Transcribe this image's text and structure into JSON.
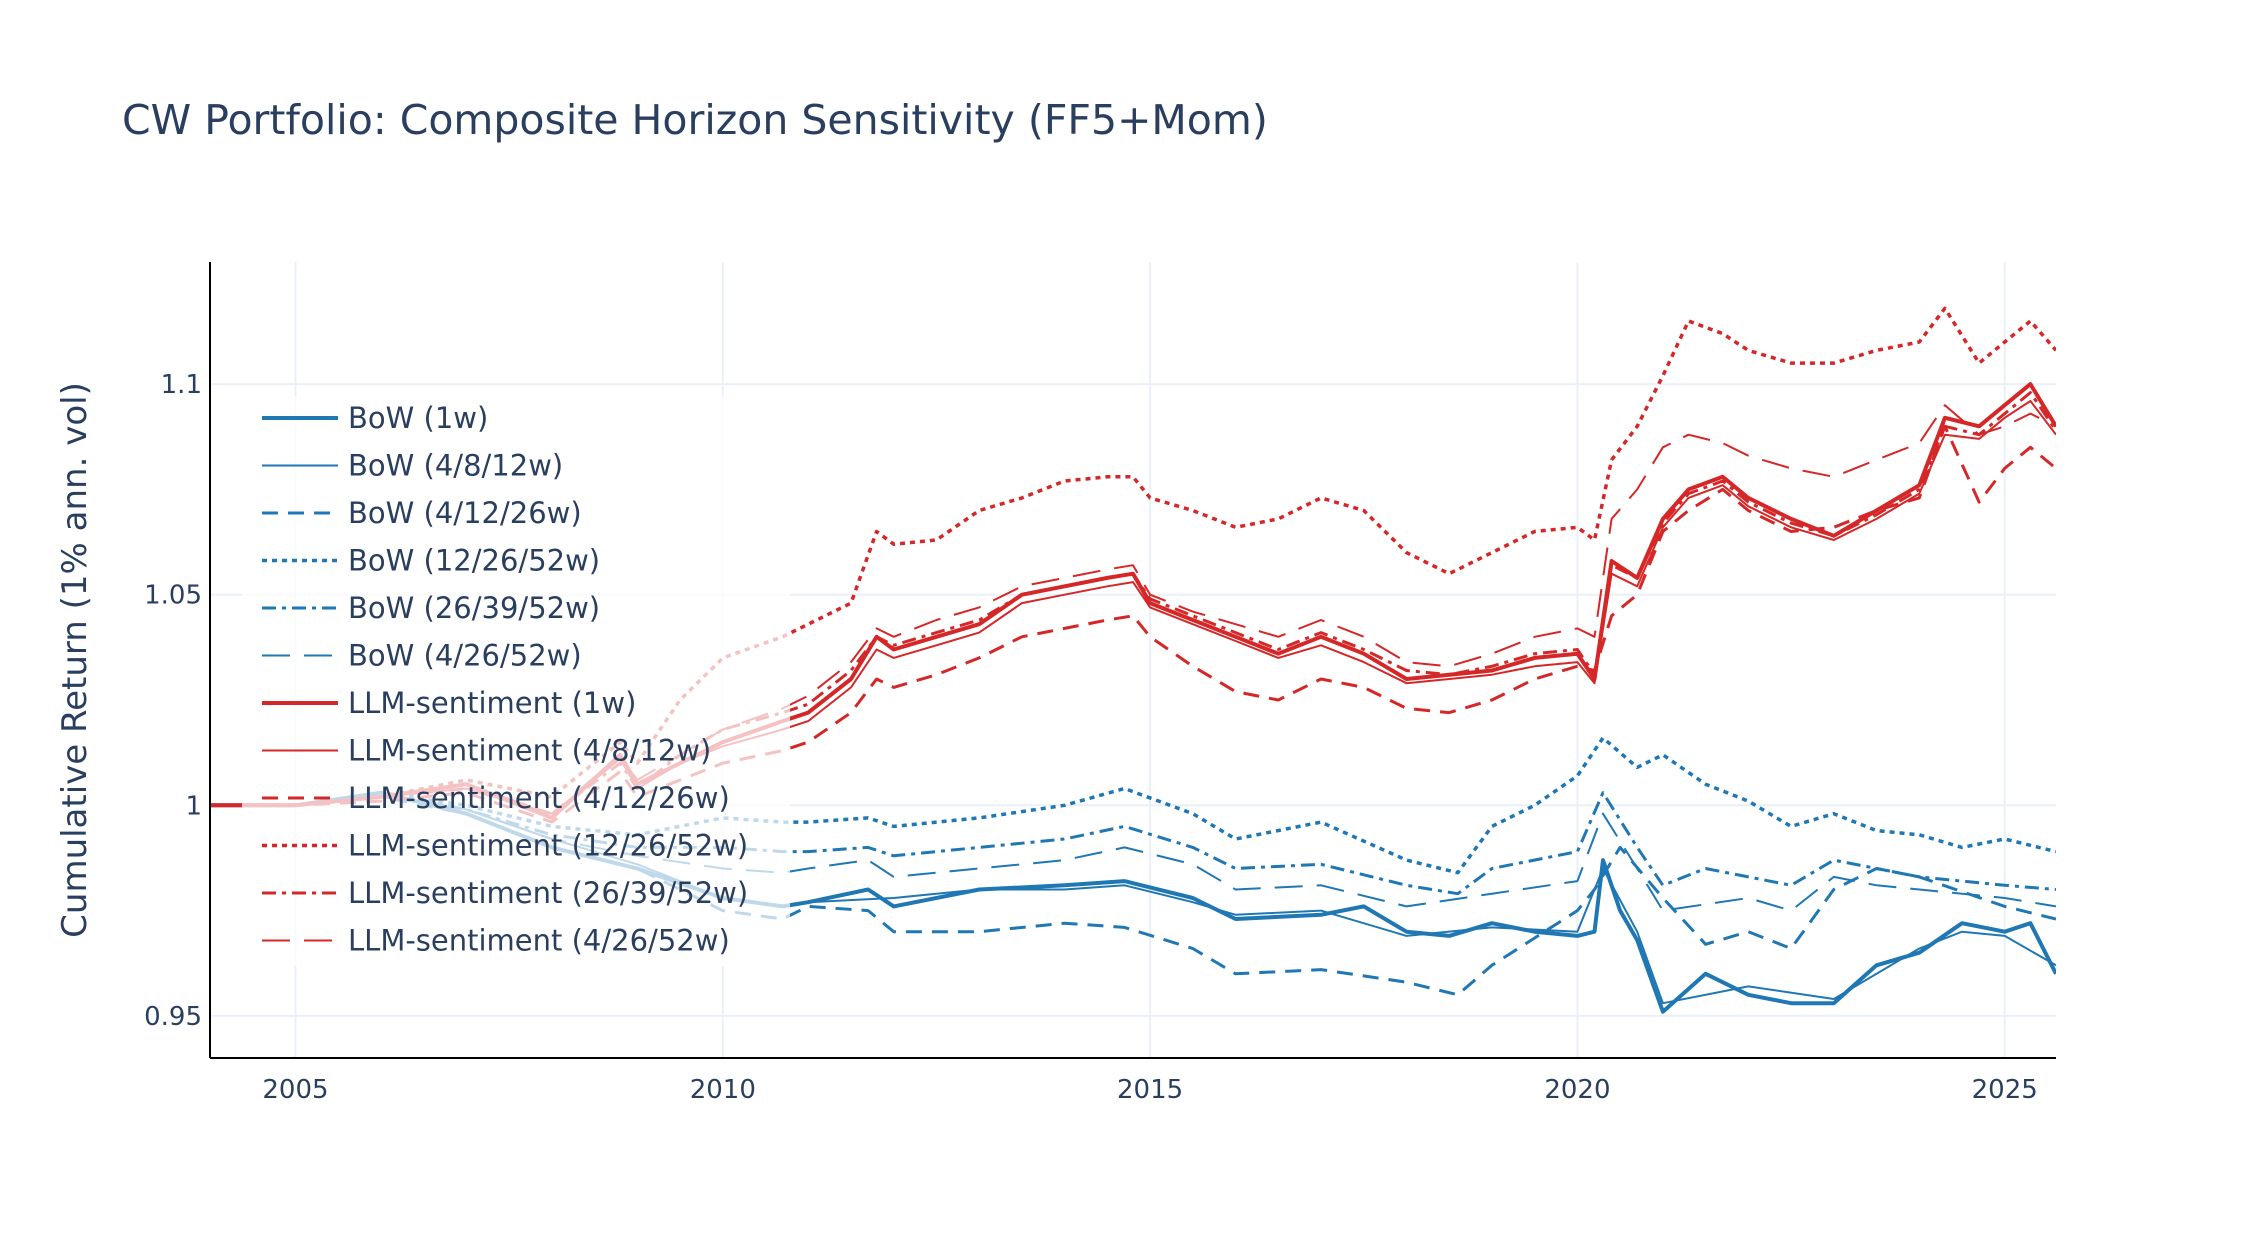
{
  "chart_data": {
    "type": "line",
    "title": "CW Portfolio: Composite Horizon Sensitivity (FF5+Mom)",
    "xlabel": "",
    "ylabel": "Cumulative Return (1% ann. vol)",
    "xlim": [
      2004.0,
      2025.6
    ],
    "ylim": [
      0.94,
      1.129
    ],
    "x_ticks": [
      {
        "value": 2005,
        "label": "2005"
      },
      {
        "value": 2010,
        "label": "2010"
      },
      {
        "value": 2015,
        "label": "2015"
      },
      {
        "value": 2020,
        "label": "2020"
      },
      {
        "value": 2025,
        "label": "2025"
      }
    ],
    "y_ticks": [
      {
        "value": 0.95,
        "label": "0.95"
      },
      {
        "value": 1.0,
        "label": "1"
      },
      {
        "value": 1.05,
        "label": "1.05"
      },
      {
        "value": 1.1,
        "label": "1.1"
      }
    ],
    "grid": true,
    "legend_position": "left-inside",
    "colors": {
      "bow": "#1f77b4",
      "llm": "#d62728",
      "grid": "#ebf0f8",
      "text": "#2a3f5f"
    },
    "series": [
      {
        "name": "BoW (1w)",
        "group": "bow",
        "dash": "solid",
        "width": 4,
        "x": [
          2004.0,
          2005.0,
          2006.0,
          2007.0,
          2008.0,
          2009.0,
          2010.0,
          2010.7,
          2011.0,
          2011.7,
          2012.0,
          2013.0,
          2014.0,
          2014.7,
          2015.5,
          2016.0,
          2017.0,
          2017.5,
          2018.0,
          2018.5,
          2019.0,
          2019.5,
          2020.0,
          2020.2,
          2020.3,
          2020.5,
          2020.7,
          2021.0,
          2021.5,
          2022.0,
          2022.5,
          2023.0,
          2023.5,
          2024.0,
          2024.5,
          2025.0,
          2025.3,
          2025.6
        ],
        "y": [
          1.0,
          1.0,
          1.003,
          0.998,
          0.99,
          0.985,
          0.978,
          0.976,
          0.977,
          0.98,
          0.976,
          0.98,
          0.981,
          0.982,
          0.978,
          0.973,
          0.974,
          0.976,
          0.97,
          0.969,
          0.972,
          0.97,
          0.969,
          0.97,
          0.987,
          0.975,
          0.968,
          0.951,
          0.96,
          0.955,
          0.953,
          0.953,
          0.962,
          0.965,
          0.972,
          0.97,
          0.972,
          0.96
        ]
      },
      {
        "name": "BoW (4/8/12w)",
        "group": "bow",
        "dash": "solid",
        "width": 2,
        "x": [
          2004.0,
          2005.0,
          2006.0,
          2007.0,
          2008.0,
          2009.0,
          2010.0,
          2010.7,
          2011.0,
          2012.0,
          2013.0,
          2014.0,
          2014.7,
          2015.5,
          2016.0,
          2017.0,
          2018.0,
          2019.0,
          2020.0,
          2020.3,
          2020.7,
          2021.0,
          2022.0,
          2023.0,
          2024.0,
          2024.5,
          2025.0,
          2025.6
        ],
        "y": [
          1.0,
          1.0,
          1.002,
          0.999,
          0.992,
          0.986,
          0.978,
          0.976,
          0.977,
          0.978,
          0.98,
          0.98,
          0.981,
          0.977,
          0.974,
          0.975,
          0.969,
          0.971,
          0.97,
          0.985,
          0.97,
          0.953,
          0.957,
          0.954,
          0.966,
          0.97,
          0.969,
          0.962
        ]
      },
      {
        "name": "BoW (4/12/26w)",
        "group": "bow",
        "dash": "16,10",
        "width": 3,
        "x": [
          2004.0,
          2005.0,
          2006.0,
          2007.0,
          2008.0,
          2009.0,
          2010.0,
          2010.7,
          2011.0,
          2011.7,
          2012.0,
          2013.0,
          2014.0,
          2014.7,
          2015.5,
          2016.0,
          2017.0,
          2018.0,
          2018.6,
          2019.0,
          2020.0,
          2020.2,
          2020.5,
          2021.0,
          2021.5,
          2022.0,
          2022.5,
          2023.0,
          2023.5,
          2024.0,
          2025.0,
          2025.6
        ],
        "y": [
          1.0,
          1.0,
          1.002,
          0.998,
          0.99,
          0.985,
          0.975,
          0.973,
          0.976,
          0.975,
          0.97,
          0.97,
          0.972,
          0.971,
          0.966,
          0.96,
          0.961,
          0.958,
          0.955,
          0.962,
          0.975,
          0.98,
          0.99,
          0.978,
          0.967,
          0.97,
          0.966,
          0.98,
          0.985,
          0.983,
          0.976,
          0.973
        ]
      },
      {
        "name": "BoW (12/26/52w)",
        "group": "bow",
        "dash": "5,5",
        "width": 3.5,
        "x": [
          2004.0,
          2005.0,
          2006.0,
          2007.0,
          2008.0,
          2009.0,
          2010.0,
          2010.7,
          2011.0,
          2011.7,
          2012.0,
          2013.0,
          2014.0,
          2014.7,
          2015.5,
          2016.0,
          2017.0,
          2018.0,
          2018.6,
          2019.0,
          2019.5,
          2020.0,
          2020.3,
          2020.7,
          2021.0,
          2021.5,
          2022.0,
          2022.5,
          2023.0,
          2023.5,
          2024.0,
          2024.5,
          2025.0,
          2025.6
        ],
        "y": [
          1.0,
          1.0,
          1.003,
          1.0,
          0.995,
          0.993,
          0.997,
          0.996,
          0.996,
          0.997,
          0.995,
          0.997,
          1.0,
          1.004,
          0.998,
          0.992,
          0.996,
          0.987,
          0.984,
          0.995,
          1.0,
          1.007,
          1.016,
          1.009,
          1.012,
          1.005,
          1.001,
          0.995,
          0.998,
          0.994,
          0.993,
          0.99,
          0.992,
          0.989
        ]
      },
      {
        "name": "BoW (26/39/52w)",
        "group": "bow",
        "dash": "14,6,4,6",
        "width": 3,
        "x": [
          2004.0,
          2005.0,
          2006.0,
          2007.0,
          2008.0,
          2009.0,
          2010.0,
          2010.7,
          2011.0,
          2011.7,
          2012.0,
          2013.0,
          2014.0,
          2014.7,
          2015.5,
          2016.0,
          2017.0,
          2018.0,
          2018.6,
          2019.0,
          2020.0,
          2020.3,
          2020.7,
          2021.0,
          2021.5,
          2022.0,
          2022.5,
          2023.0,
          2023.5,
          2024.0,
          2025.0,
          2025.6
        ],
        "y": [
          1.0,
          1.0,
          1.003,
          0.999,
          0.993,
          0.99,
          0.99,
          0.989,
          0.989,
          0.99,
          0.988,
          0.99,
          0.992,
          0.995,
          0.99,
          0.985,
          0.986,
          0.981,
          0.979,
          0.985,
          0.989,
          1.003,
          0.99,
          0.981,
          0.985,
          0.983,
          0.981,
          0.987,
          0.985,
          0.983,
          0.981,
          0.98
        ]
      },
      {
        "name": "BoW (4/26/52w)",
        "group": "bow",
        "dash": "28,14",
        "width": 2,
        "x": [
          2004.0,
          2005.0,
          2006.0,
          2007.0,
          2008.0,
          2009.0,
          2010.0,
          2010.7,
          2011.0,
          2011.7,
          2012.0,
          2013.0,
          2014.0,
          2014.7,
          2015.5,
          2016.0,
          2017.0,
          2018.0,
          2019.0,
          2020.0,
          2020.3,
          2020.7,
          2021.0,
          2022.0,
          2022.5,
          2023.0,
          2023.5,
          2024.0,
          2025.0,
          2025.6
        ],
        "y": [
          1.0,
          1.0,
          1.003,
          0.999,
          0.992,
          0.988,
          0.985,
          0.984,
          0.985,
          0.987,
          0.983,
          0.985,
          0.987,
          0.99,
          0.986,
          0.98,
          0.981,
          0.976,
          0.979,
          0.982,
          0.998,
          0.985,
          0.975,
          0.978,
          0.975,
          0.983,
          0.981,
          0.98,
          0.978,
          0.976
        ]
      },
      {
        "name": "LLM-sentiment (1w)",
        "group": "llm",
        "dash": "solid",
        "width": 4,
        "x": [
          2004.0,
          2005.0,
          2006.0,
          2007.0,
          2008.0,
          2008.8,
          2009.0,
          2009.5,
          2010.0,
          2010.7,
          2011.0,
          2011.5,
          2011.8,
          2012.0,
          2012.5,
          2013.0,
          2013.5,
          2014.0,
          2014.5,
          2014.8,
          2015.0,
          2015.5,
          2016.0,
          2016.5,
          2017.0,
          2017.5,
          2018.0,
          2018.5,
          2019.0,
          2019.5,
          2020.0,
          2020.2,
          2020.4,
          2020.7,
          2021.0,
          2021.3,
          2021.7,
          2022.0,
          2022.5,
          2023.0,
          2023.5,
          2024.0,
          2024.3,
          2024.7,
          2025.0,
          2025.3,
          2025.6
        ],
        "y": [
          1.0,
          1.0,
          1.002,
          1.005,
          0.997,
          1.012,
          1.005,
          1.01,
          1.015,
          1.02,
          1.022,
          1.03,
          1.04,
          1.037,
          1.04,
          1.043,
          1.05,
          1.052,
          1.054,
          1.055,
          1.048,
          1.044,
          1.04,
          1.036,
          1.04,
          1.036,
          1.03,
          1.031,
          1.032,
          1.035,
          1.036,
          1.03,
          1.058,
          1.054,
          1.068,
          1.075,
          1.078,
          1.073,
          1.068,
          1.064,
          1.07,
          1.076,
          1.092,
          1.09,
          1.095,
          1.1,
          1.09
        ]
      },
      {
        "name": "LLM-sentiment (4/8/12w)",
        "group": "llm",
        "dash": "solid",
        "width": 2,
        "x": [
          2004.0,
          2005.0,
          2006.0,
          2007.0,
          2008.0,
          2008.8,
          2009.0,
          2009.5,
          2010.0,
          2010.7,
          2011.0,
          2011.5,
          2011.8,
          2012.0,
          2012.5,
          2013.0,
          2013.5,
          2014.0,
          2014.5,
          2014.8,
          2015.0,
          2015.5,
          2016.0,
          2016.5,
          2017.0,
          2017.5,
          2018.0,
          2018.5,
          2019.0,
          2019.5,
          2020.0,
          2020.2,
          2020.4,
          2020.7,
          2021.0,
          2021.3,
          2021.7,
          2022.0,
          2022.5,
          2023.0,
          2023.5,
          2024.0,
          2024.3,
          2024.7,
          2025.0,
          2025.3,
          2025.6
        ],
        "y": [
          1.0,
          1.0,
          1.002,
          1.004,
          0.998,
          1.011,
          1.004,
          1.01,
          1.014,
          1.018,
          1.02,
          1.028,
          1.037,
          1.035,
          1.038,
          1.041,
          1.048,
          1.05,
          1.052,
          1.053,
          1.047,
          1.043,
          1.039,
          1.035,
          1.038,
          1.034,
          1.029,
          1.03,
          1.031,
          1.033,
          1.034,
          1.029,
          1.055,
          1.052,
          1.066,
          1.073,
          1.076,
          1.071,
          1.066,
          1.063,
          1.068,
          1.074,
          1.088,
          1.087,
          1.092,
          1.096,
          1.088
        ]
      },
      {
        "name": "LLM-sentiment (4/12/26w)",
        "group": "llm",
        "dash": "16,10",
        "width": 3,
        "x": [
          2004.0,
          2005.0,
          2006.0,
          2007.0,
          2008.0,
          2008.8,
          2009.0,
          2009.5,
          2010.0,
          2010.7,
          2011.0,
          2011.5,
          2011.8,
          2012.0,
          2012.5,
          2013.0,
          2013.5,
          2014.0,
          2014.5,
          2014.8,
          2015.0,
          2015.5,
          2016.0,
          2016.5,
          2017.0,
          2017.5,
          2018.0,
          2018.5,
          2019.0,
          2019.5,
          2020.0,
          2020.2,
          2020.4,
          2020.7,
          2021.0,
          2021.3,
          2021.7,
          2022.0,
          2022.5,
          2023.0,
          2023.5,
          2024.0,
          2024.3,
          2024.7,
          2025.0,
          2025.3,
          2025.6
        ],
        "y": [
          1.0,
          1.0,
          1.001,
          1.003,
          0.996,
          1.008,
          1.002,
          1.006,
          1.01,
          1.013,
          1.015,
          1.022,
          1.03,
          1.028,
          1.031,
          1.035,
          1.04,
          1.042,
          1.044,
          1.045,
          1.04,
          1.033,
          1.027,
          1.025,
          1.03,
          1.028,
          1.023,
          1.022,
          1.025,
          1.03,
          1.033,
          1.032,
          1.045,
          1.05,
          1.065,
          1.07,
          1.075,
          1.07,
          1.065,
          1.066,
          1.07,
          1.073,
          1.09,
          1.072,
          1.08,
          1.085,
          1.08
        ]
      },
      {
        "name": "LLM-sentiment (12/26/52w)",
        "group": "llm",
        "dash": "5,5",
        "width": 3.5,
        "x": [
          2004.0,
          2005.0,
          2006.0,
          2007.0,
          2008.0,
          2008.8,
          2009.0,
          2009.5,
          2010.0,
          2010.7,
          2011.0,
          2011.5,
          2011.8,
          2012.0,
          2012.5,
          2013.0,
          2013.5,
          2014.0,
          2014.5,
          2014.8,
          2015.0,
          2015.5,
          2016.0,
          2016.5,
          2017.0,
          2017.5,
          2018.0,
          2018.5,
          2019.0,
          2019.5,
          2020.0,
          2020.2,
          2020.4,
          2020.7,
          2021.0,
          2021.3,
          2021.7,
          2022.0,
          2022.5,
          2023.0,
          2023.5,
          2024.0,
          2024.3,
          2024.7,
          2025.0,
          2025.3,
          2025.6
        ],
        "y": [
          1.0,
          1.0,
          1.002,
          1.006,
          1.002,
          1.015,
          1.01,
          1.025,
          1.035,
          1.04,
          1.043,
          1.048,
          1.065,
          1.062,
          1.063,
          1.07,
          1.073,
          1.077,
          1.078,
          1.078,
          1.073,
          1.07,
          1.066,
          1.068,
          1.073,
          1.07,
          1.06,
          1.055,
          1.06,
          1.065,
          1.066,
          1.063,
          1.082,
          1.09,
          1.102,
          1.115,
          1.112,
          1.108,
          1.105,
          1.105,
          1.108,
          1.11,
          1.118,
          1.105,
          1.11,
          1.115,
          1.108
        ]
      },
      {
        "name": "LLM-sentiment (26/39/52w)",
        "group": "llm",
        "dash": "14,6,4,6",
        "width": 3,
        "x": [
          2004.0,
          2005.0,
          2006.0,
          2007.0,
          2008.0,
          2008.8,
          2009.0,
          2009.5,
          2010.0,
          2010.7,
          2011.0,
          2011.5,
          2011.8,
          2012.0,
          2012.5,
          2013.0,
          2013.5,
          2014.0,
          2014.5,
          2014.8,
          2015.0,
          2015.5,
          2016.0,
          2016.5,
          2017.0,
          2017.5,
          2018.0,
          2018.5,
          2019.0,
          2019.5,
          2020.0,
          2020.2,
          2020.4,
          2020.7,
          2021.0,
          2021.3,
          2021.7,
          2022.0,
          2022.5,
          2023.0,
          2023.5,
          2024.0,
          2024.3,
          2024.7,
          2025.0,
          2025.3,
          2025.6
        ],
        "y": [
          1.0,
          1.0,
          1.002,
          1.004,
          0.998,
          1.01,
          1.004,
          1.012,
          1.018,
          1.022,
          1.024,
          1.032,
          1.04,
          1.038,
          1.041,
          1.044,
          1.05,
          1.052,
          1.054,
          1.055,
          1.049,
          1.045,
          1.041,
          1.037,
          1.041,
          1.037,
          1.032,
          1.031,
          1.033,
          1.036,
          1.037,
          1.031,
          1.057,
          1.054,
          1.067,
          1.074,
          1.077,
          1.072,
          1.067,
          1.064,
          1.069,
          1.075,
          1.09,
          1.088,
          1.093,
          1.098,
          1.089
        ]
      },
      {
        "name": "LLM-sentiment (4/26/52w)",
        "group": "llm",
        "dash": "28,14",
        "width": 2,
        "x": [
          2004.0,
          2005.0,
          2006.0,
          2007.0,
          2008.0,
          2008.8,
          2009.0,
          2009.5,
          2010.0,
          2010.7,
          2011.0,
          2011.5,
          2011.8,
          2012.0,
          2012.5,
          2013.0,
          2013.5,
          2014.0,
          2014.5,
          2014.8,
          2015.0,
          2015.5,
          2016.0,
          2016.5,
          2017.0,
          2017.5,
          2018.0,
          2018.5,
          2019.0,
          2019.5,
          2020.0,
          2020.2,
          2020.4,
          2020.7,
          2021.0,
          2021.3,
          2021.7,
          2022.0,
          2022.5,
          2023.0,
          2023.5,
          2024.0,
          2024.3,
          2024.7,
          2025.0,
          2025.3,
          2025.6
        ],
        "y": [
          1.0,
          1.0,
          1.002,
          1.005,
          0.998,
          1.012,
          1.006,
          1.012,
          1.018,
          1.023,
          1.026,
          1.034,
          1.042,
          1.04,
          1.044,
          1.047,
          1.052,
          1.054,
          1.056,
          1.057,
          1.05,
          1.046,
          1.043,
          1.04,
          1.044,
          1.04,
          1.034,
          1.033,
          1.036,
          1.04,
          1.042,
          1.04,
          1.068,
          1.075,
          1.085,
          1.088,
          1.086,
          1.083,
          1.08,
          1.078,
          1.082,
          1.086,
          1.095,
          1.088,
          1.09,
          1.093,
          1.09
        ]
      }
    ]
  }
}
